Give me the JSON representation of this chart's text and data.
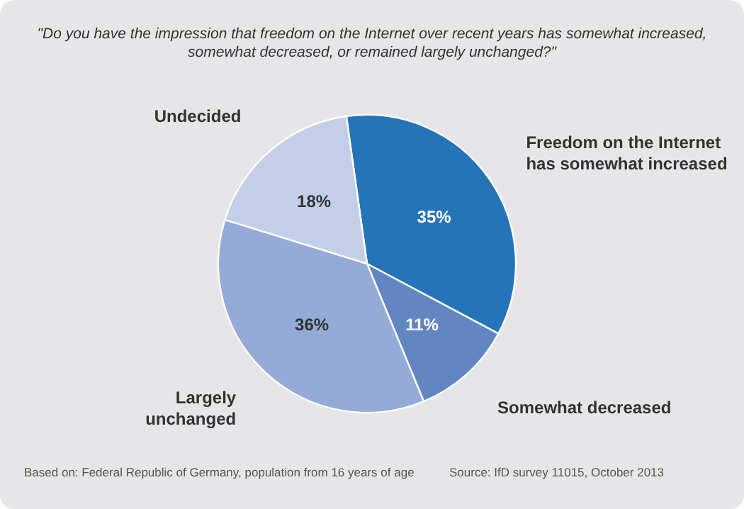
{
  "chart_data": {
    "type": "pie",
    "title": "\"Do you have the impression that freedom on the Internet over recent years has somewhat increased,\nsomewhat decreased, or remained largely unchanged?\"",
    "categories": [
      "Freedom on the Internet\nhas somewhat increased",
      "Somewhat decreased",
      "Largely\nunchanged",
      "Undecided"
    ],
    "values": [
      35,
      11,
      36,
      18
    ],
    "colors": [
      "#2574b8",
      "#6286c1",
      "#93abd6",
      "#c3cfe8"
    ],
    "value_labels": [
      "35%",
      "11%",
      "36%",
      "18%"
    ],
    "annotations": [
      "Based on: Federal Republic of Germany, population from 16 years of age",
      "Source: IfD survey 11015, October 2013"
    ]
  }
}
